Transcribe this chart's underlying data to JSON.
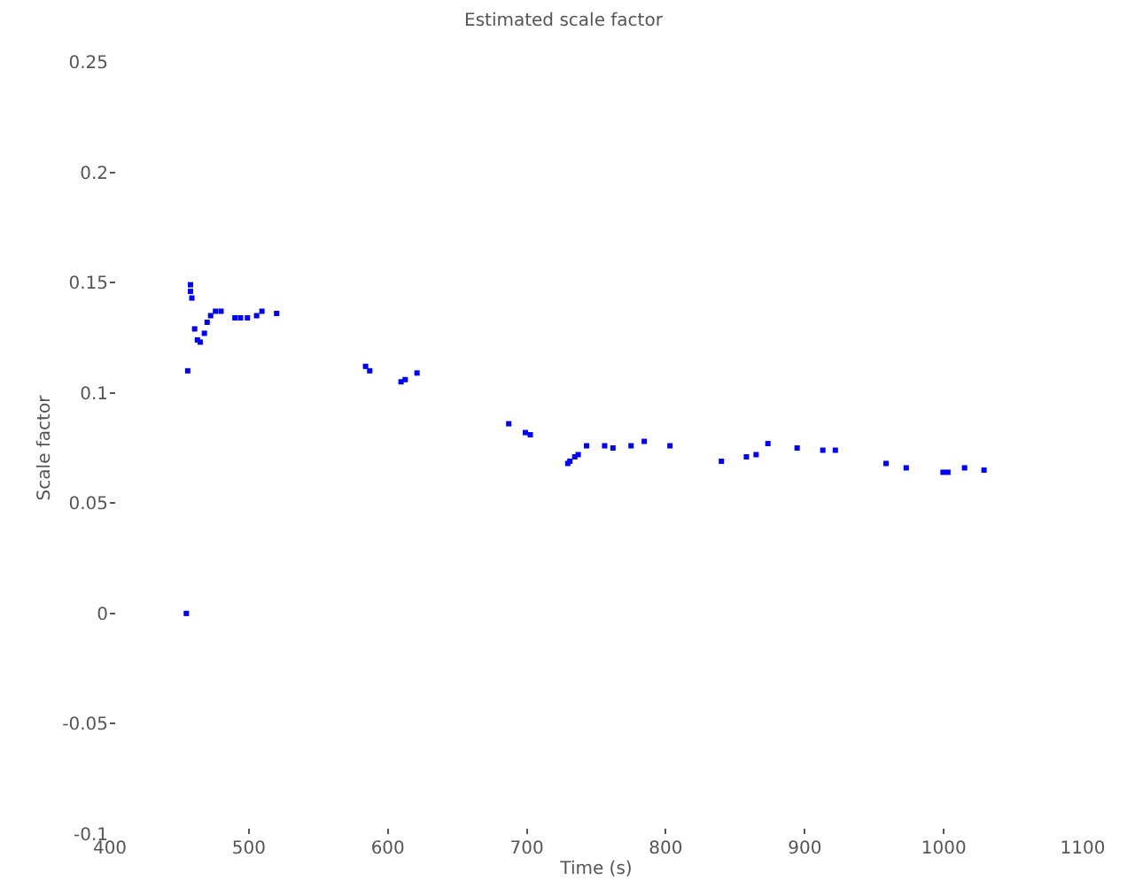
{
  "chart_data": {
    "type": "scatter",
    "title": "Estimated scale factor",
    "xlabel": "Time (s)",
    "ylabel": "Scale factor",
    "x": [
      455,
      456,
      458,
      458,
      459,
      461,
      463,
      465,
      468,
      470,
      472.5,
      476,
      480,
      490,
      494,
      499,
      505.6,
      509.4,
      520,
      584,
      587,
      609.5,
      612.5,
      621,
      687,
      699,
      702.5,
      729.5,
      731,
      734.5,
      737,
      743,
      756,
      762,
      775,
      784.5,
      803,
      840,
      858,
      865,
      873.5,
      894.5,
      913,
      922,
      958.5,
      973,
      999.5,
      1003,
      1015,
      1029
    ],
    "series": [
      {
        "color": "#0000ff",
        "values": [
          0.0,
          0.11,
          0.149,
          0.146,
          0.143,
          0.129,
          0.124,
          0.123,
          0.127,
          0.132,
          0.135,
          0.137,
          0.137,
          0.134,
          0.134,
          0.134,
          0.135,
          0.137,
          0.136,
          0.112,
          0.11,
          0.105,
          0.106,
          0.109,
          0.086,
          0.082,
          0.081,
          0.068,
          0.069,
          0.071,
          0.072,
          0.076,
          0.076,
          0.075,
          0.076,
          0.078,
          0.076,
          0.069,
          0.071,
          0.072,
          0.077,
          0.075,
          0.074,
          0.074,
          0.068,
          0.066,
          0.064,
          0.064,
          0.066,
          0.065
        ]
      }
    ],
    "xlim": [
      400,
      1100
    ],
    "xticks": [
      400,
      500,
      600,
      700,
      800,
      900,
      1000,
      1100
    ],
    "ylim": [
      -0.1,
      0.25
    ],
    "yticks": [
      -0.1,
      -0.05,
      0,
      0.05,
      0.1,
      0.15,
      0.2,
      0.25
    ],
    "legend": false,
    "marker": "square"
  }
}
